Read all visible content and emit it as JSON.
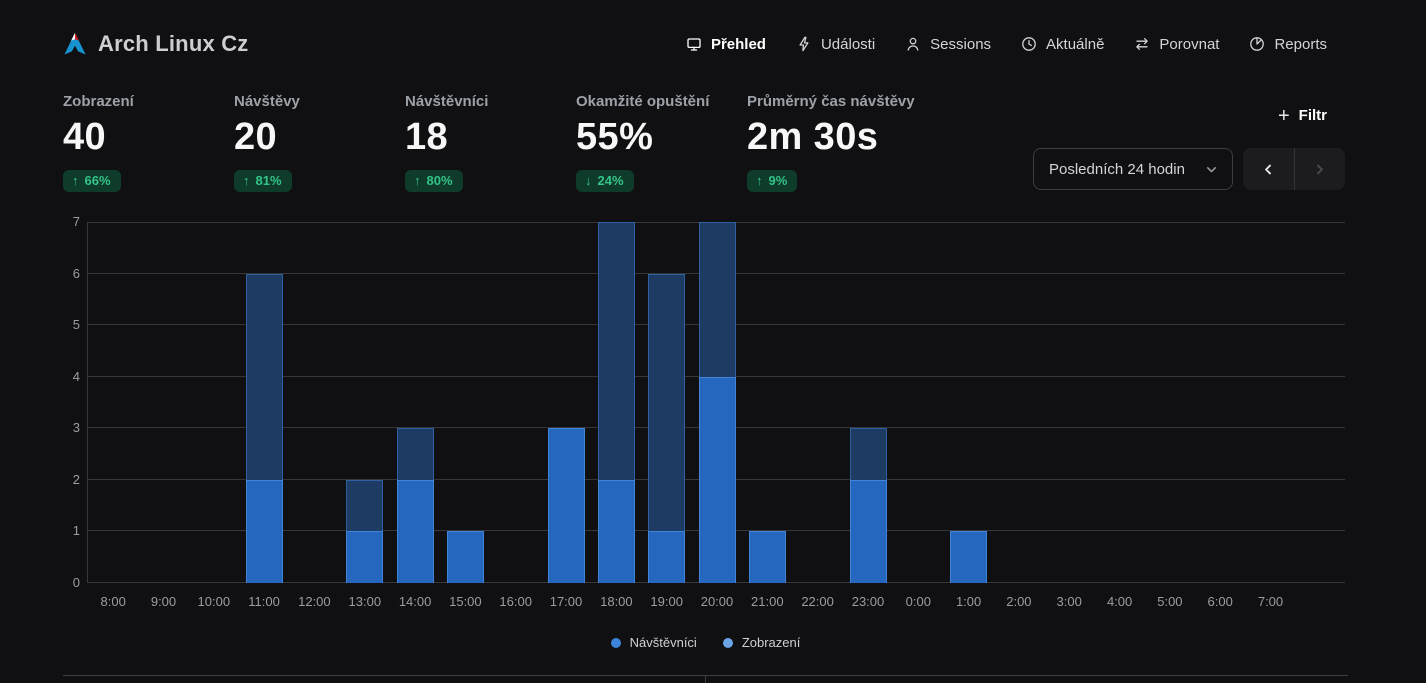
{
  "site": {
    "title": "Arch Linux Cz",
    "logo": "arch-linux-cz-logo"
  },
  "nav": {
    "items": [
      {
        "id": "prehled",
        "label": "Přehled",
        "icon": "monitor-icon",
        "active": true
      },
      {
        "id": "udalosti",
        "label": "Události",
        "icon": "lightning-icon",
        "active": false
      },
      {
        "id": "sessions",
        "label": "Sessions",
        "icon": "user-icon",
        "active": false
      },
      {
        "id": "aktualne",
        "label": "Aktuálně",
        "icon": "clock-icon",
        "active": false
      },
      {
        "id": "porovnat",
        "label": "Porovnat",
        "icon": "compare-arrows-icon",
        "active": false
      },
      {
        "id": "reports",
        "label": "Reports",
        "icon": "pie-chart-icon",
        "active": false
      }
    ]
  },
  "metrics": [
    {
      "id": "zobrazeni",
      "label": "Zobrazení",
      "value": "40",
      "change": "66%",
      "direction": "up"
    },
    {
      "id": "navstevy",
      "label": "Návštěvy",
      "value": "20",
      "change": "81%",
      "direction": "up"
    },
    {
      "id": "navstevnici",
      "label": "Návštěvníci",
      "value": "18",
      "change": "80%",
      "direction": "up"
    },
    {
      "id": "okamzite-opusteni",
      "label": "Okamžité opuštění",
      "value": "55%",
      "change": "24%",
      "direction": "down"
    },
    {
      "id": "prumerny-cas",
      "label": "Průměrný čas návštěvy",
      "value": "2m 30s",
      "change": "9%",
      "direction": "up"
    }
  ],
  "controls": {
    "filter_label": "Filtr",
    "date_range_value": "Posledních 24 hodin",
    "prev_icon": "chevron-left-icon",
    "next_icon": "chevron-right-icon",
    "next_disabled": true
  },
  "chart_data": {
    "type": "bar",
    "categories": [
      "8:00",
      "9:00",
      "10:00",
      "11:00",
      "12:00",
      "13:00",
      "14:00",
      "15:00",
      "16:00",
      "17:00",
      "18:00",
      "19:00",
      "20:00",
      "21:00",
      "22:00",
      "23:00",
      "0:00",
      "1:00",
      "2:00",
      "3:00",
      "4:00",
      "5:00",
      "6:00",
      "7:00"
    ],
    "series": [
      {
        "name": "Zobrazení",
        "fill": "#1d3b63",
        "border": "#2e5fa0",
        "values": [
          0,
          0,
          0,
          6,
          0,
          2,
          3,
          1,
          0,
          3,
          7,
          6,
          7,
          1,
          0,
          3,
          0,
          1,
          0,
          0,
          0,
          0,
          0,
          0
        ]
      },
      {
        "name": "Návštěvníci",
        "fill": "#2567be",
        "border": "#4285d8",
        "values": [
          0,
          0,
          0,
          2,
          0,
          1,
          2,
          1,
          0,
          3,
          2,
          1,
          4,
          1,
          0,
          2,
          0,
          1,
          0,
          0,
          0,
          0,
          0,
          0
        ]
      }
    ],
    "ylim": [
      0,
      7
    ],
    "yticks": [
      0,
      1,
      2,
      3,
      4,
      5,
      6,
      7
    ],
    "grid": true,
    "legend": [
      {
        "label": "Návštěvníci",
        "dot": "#3b86dc"
      },
      {
        "label": "Zobrazení",
        "dot": "#6ba4e6"
      }
    ],
    "legend_position": "bottom",
    "xlabel": "",
    "ylabel": ""
  },
  "colors": {
    "background": "#101012",
    "gridline": "#373737",
    "badge_bg": "#0e3b2a",
    "badge_text": "#34c489",
    "axis_label": "#9c9ca3"
  }
}
